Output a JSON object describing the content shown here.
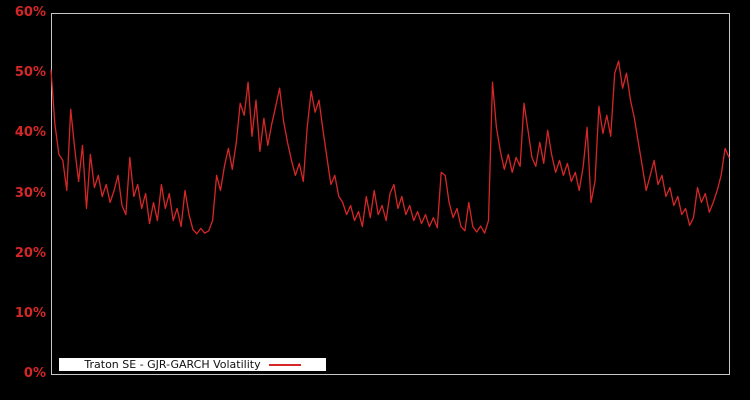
{
  "chart_data": {
    "type": "line",
    "title": "",
    "xlabel": "",
    "ylabel": "",
    "unit": "%",
    "ylim": [
      0,
      60
    ],
    "ytick_values": [
      0,
      10,
      20,
      30,
      40,
      50,
      60
    ],
    "ytick_labels": [
      "0%",
      "10%",
      "20%",
      "30%",
      "40%",
      "50%",
      "60%"
    ],
    "xticks": [],
    "grid": false,
    "legend_position": "lower-left",
    "background_color": "#000000",
    "axis_border_color": "#c8c8c8",
    "tick_label_color": "#d62728",
    "legend": {
      "label": "Traton SE - GJR-GARCH Volatility",
      "background": "#ffffff",
      "border_color": "#000000",
      "text_color": "#111111"
    },
    "series": [
      {
        "name": "Traton SE - GJR-GARCH Volatility",
        "color": "#d62728",
        "values": [
          50.5,
          41.5,
          36.5,
          35.5,
          30.5,
          44,
          37.5,
          32,
          38,
          27.5,
          36.5,
          31,
          33,
          29.5,
          31.5,
          28.5,
          30.5,
          33,
          28,
          26.5,
          36,
          29.5,
          31.5,
          27.5,
          30,
          25,
          28.5,
          25.5,
          31.5,
          27.5,
          30,
          25.5,
          27.5,
          24.5,
          30.5,
          26.5,
          24,
          23.3,
          24.2,
          23.4,
          23.8,
          25.5,
          33,
          30.5,
          34.5,
          37.5,
          34,
          38.5,
          45,
          43,
          48.5,
          39.5,
          45.5,
          37,
          42.5,
          38,
          41.5,
          44.5,
          47.5,
          42,
          38.5,
          35.5,
          33,
          35,
          32,
          41,
          47,
          43.5,
          45.5,
          40.5,
          36,
          31.5,
          33,
          29.5,
          28.5,
          26.5,
          28,
          25.5,
          27,
          24.5,
          29.5,
          26,
          30.5,
          26.5,
          28,
          25.5,
          30,
          31.5,
          27.5,
          29.5,
          26.5,
          28,
          25.5,
          27,
          25,
          26.5,
          24.5,
          26,
          24.3,
          33.5,
          33,
          28.5,
          26,
          27.5,
          24.5,
          23.8,
          28.5,
          24.5,
          23.6,
          24.6,
          23.4,
          25.5,
          48.5,
          41,
          37,
          34,
          36.5,
          33.5,
          36,
          34.5,
          45,
          40.5,
          36,
          34.5,
          38.5,
          35,
          40.5,
          36.5,
          33.5,
          35.5,
          33,
          35,
          32,
          33.5,
          30.5,
          34.5,
          41,
          28.5,
          32,
          44.5,
          40,
          43,
          39.5,
          50,
          52,
          47.5,
          50,
          45.5,
          42.5,
          38.5,
          34.5,
          30.5,
          33,
          35.5,
          31.5,
          33,
          29.5,
          31,
          28,
          29.5,
          26.5,
          27.5,
          24.7,
          26,
          31,
          28.5,
          30,
          26.9,
          28.5,
          30.5,
          33,
          37.5,
          36
        ]
      }
    ]
  }
}
